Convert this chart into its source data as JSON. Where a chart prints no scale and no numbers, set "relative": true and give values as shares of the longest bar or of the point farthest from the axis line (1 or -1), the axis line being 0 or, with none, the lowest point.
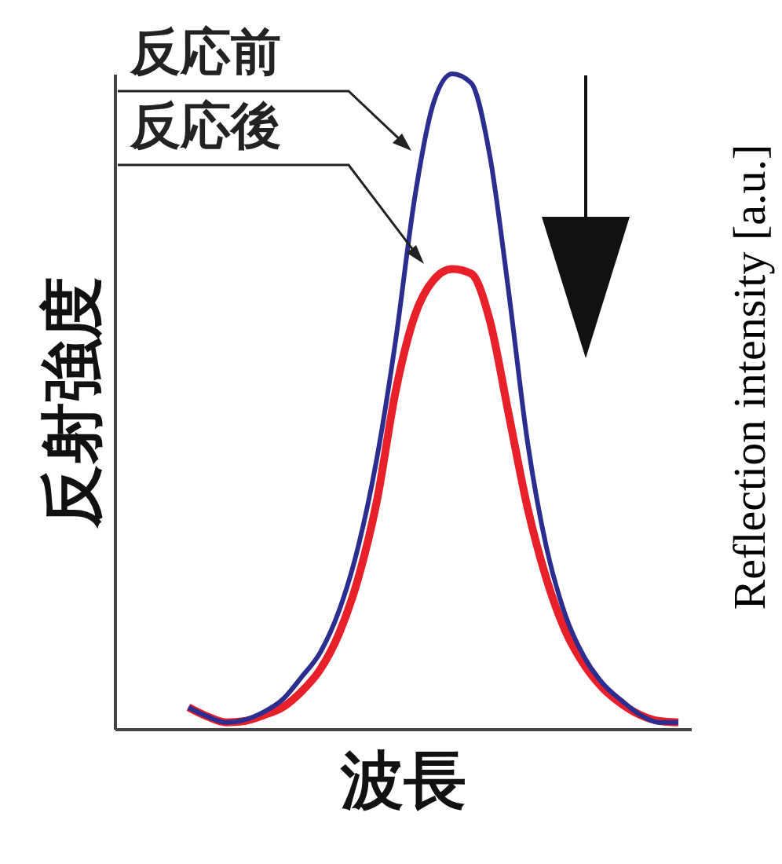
{
  "chart_data": {
    "type": "line",
    "relative": true,
    "xlabel": "波長",
    "ylabel": "反射強度",
    "y2label": "Reflection intensity [a.u.]",
    "categories": [
      null,
      null,
      null,
      null,
      null,
      null,
      null,
      null,
      null,
      null,
      null,
      null,
      null,
      null,
      null,
      null,
      null,
      null,
      null,
      null,
      null,
      null,
      null,
      null,
      null,
      null,
      null
    ],
    "series": [
      {
        "name": "反応前",
        "color": "#2b2d8f",
        "values": [
          0.033,
          0.019,
          0.01,
          0.014,
          0.026,
          0.045,
          0.079,
          0.117,
          0.181,
          0.277,
          0.413,
          0.594,
          0.809,
          0.955,
          1,
          0.986,
          0.874,
          0.666,
          0.437,
          0.277,
          0.174,
          0.11,
          0.069,
          0.043,
          0.021,
          0.01,
          0.01
        ]
      },
      {
        "name": "反応後",
        "color": "#e8202a",
        "values": [
          0.033,
          0.019,
          0.01,
          0.012,
          0.021,
          0.033,
          0.057,
          0.091,
          0.146,
          0.229,
          0.348,
          0.516,
          0.63,
          0.685,
          0.702,
          0.695,
          0.623,
          0.48,
          0.337,
          0.229,
          0.15,
          0.098,
          0.062,
          0.038,
          0.021,
          0.012,
          0.01
        ]
      }
    ]
  }
}
